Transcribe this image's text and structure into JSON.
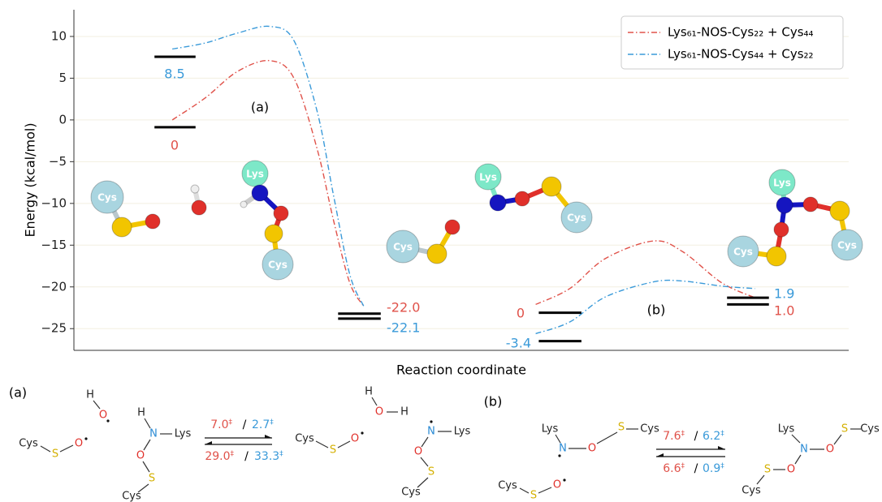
{
  "chart_data": {
    "type": "line",
    "ylabel": "Energy (kcal/mol)",
    "xlabel": "Reaction coordinate",
    "xlim": [
      0,
      100
    ],
    "ylim": [
      -27.6,
      13.2
    ],
    "yticks": [
      10,
      5,
      0,
      {
        "value": -5,
        "label": "−5"
      },
      {
        "value": -10,
        "label": "−10"
      },
      {
        "value": -15,
        "label": "−15"
      },
      {
        "value": -20,
        "label": "−20"
      },
      {
        "value": -25,
        "label": "−25"
      }
    ],
    "grid": true,
    "legend": "upper right",
    "x": [
      12.7,
      16.9,
      21.1,
      25.3,
      28.4,
      31.4,
      33.5,
      35.6,
      37.4,
      null,
      59.6,
      64.0,
      68.6,
      74.8,
      78.6,
      83.6,
      87.9
    ],
    "series": [
      {
        "name": "Lys₆₁-NOS-Cys₂₂ + Cys₄₄",
        "color": "#e0524a",
        "values": [
          0,
          2.6,
          5.8,
          7.1,
          5.0,
          -3.5,
          -12,
          -19.5,
          -22.3,
          null,
          -22.1,
          -20.2,
          -16.6,
          -14.5,
          -15.8,
          -19.5,
          -21.3
        ]
      },
      {
        "name": "Lys₆₁-NOS-Cys₄₄ + Cys₂₂",
        "color": "#3a9ad9",
        "values": [
          8.5,
          9.2,
          10.4,
          11.2,
          9.5,
          1.0,
          -9,
          -18.5,
          -22.3,
          null,
          -25.6,
          -24.2,
          -21.2,
          -19.4,
          -19.3,
          -19.9,
          -20.2
        ]
      }
    ],
    "levels": [
      {
        "x": [
          10.4,
          15.7
        ],
        "y": -0.87
      },
      {
        "x": [
          10.4,
          15.7
        ],
        "y": 7.57
      },
      {
        "x": [
          34.1,
          39.6
        ],
        "y": -23.2
      },
      {
        "x": [
          34.1,
          39.6
        ],
        "y": -23.8
      },
      {
        "x": [
          60.0,
          65.5
        ],
        "y": -23.1
      },
      {
        "x": [
          60.0,
          65.5
        ],
        "y": -26.5
      },
      {
        "x": [
          84.3,
          89.7
        ],
        "y": -21.3
      },
      {
        "x": [
          84.3,
          89.7
        ],
        "y": -22.1
      }
    ],
    "energy_labels": [
      {
        "text": "0",
        "color": "#e0524a"
      },
      {
        "text": "8.5",
        "color": "#3a9ad9"
      },
      {
        "text": "-22.0",
        "color": "#e0524a"
      },
      {
        "text": "-22.1",
        "color": "#3a9ad9"
      },
      {
        "text": "0",
        "color": "#e0524a"
      },
      {
        "text": "-3.4",
        "color": "#3a9ad9"
      },
      {
        "text": "1.9",
        "color": "#3a9ad9"
      },
      {
        "text": "1.0",
        "color": "#e0524a"
      }
    ],
    "annotations": [
      "(a)",
      "(b)"
    ]
  },
  "molecules": [
    "Cys",
    "Lys",
    "Cys",
    "Cys",
    "Lys",
    "Cys",
    "Lys",
    "Cys",
    "Cys"
  ],
  "scheme": {
    "labels": [
      "(a)",
      "(b)"
    ],
    "atoms": [
      "Cys",
      "S",
      "O",
      "H",
      "O",
      "H",
      "N",
      "Lys",
      "O",
      "S",
      "Cys",
      "Cys",
      "S",
      "O",
      "H",
      "O",
      "H",
      "N",
      "Lys",
      "O",
      "S",
      "Cys",
      "Lys",
      "N",
      "O",
      "S",
      "Cys",
      "Cys",
      "S",
      "O",
      "Lys",
      "N",
      "O",
      "S",
      "Cys",
      "O",
      "S",
      "Cys"
    ],
    "ts_mark": "‡",
    "slash": "/",
    "rates": [
      {
        "text": "7.0",
        "color": "#e0524a"
      },
      {
        "text": "2.7",
        "color": "#3a9ad9"
      },
      {
        "text": "29.0",
        "color": "#e0524a"
      },
      {
        "text": "33.3",
        "color": "#3a9ad9"
      },
      {
        "text": "7.6",
        "color": "#e0524a"
      },
      {
        "text": "6.2",
        "color": "#3a9ad9"
      },
      {
        "text": "6.6",
        "color": "#e0524a"
      },
      {
        "text": "0.9",
        "color": "#3a9ad9"
      }
    ]
  }
}
